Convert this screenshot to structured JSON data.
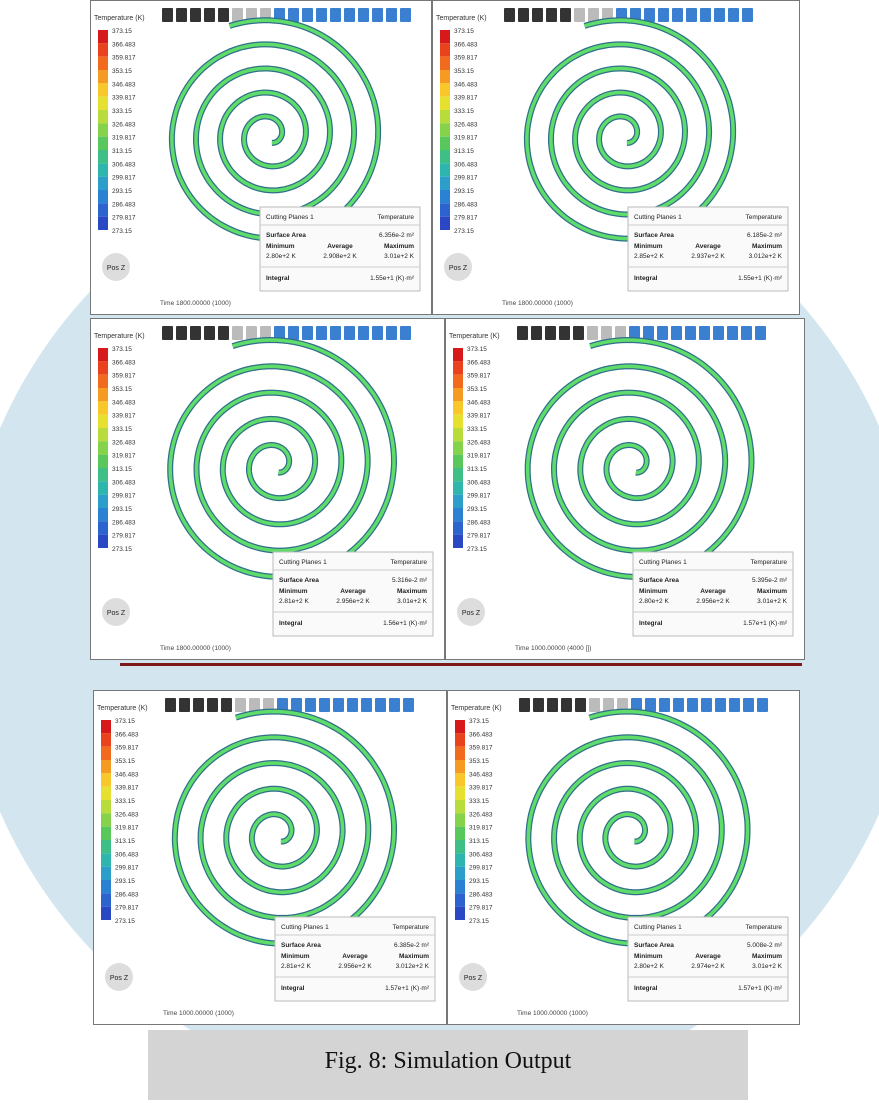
{
  "labels": {
    "legend_title": "Temperature (K)",
    "plane": "Cutting Planes 1",
    "quantity": "Temperature",
    "surface_area": "Surface Area",
    "minimum": "Minimum",
    "average": "Average",
    "maximum": "Maximum",
    "integral": "Integral",
    "view": "Pos Z"
  },
  "legend_ticks": [
    "373.15",
    "366.483",
    "359.817",
    "353.15",
    "346.483",
    "339.817",
    "333.15",
    "326.483",
    "319.817",
    "313.15",
    "306.483",
    "299.817",
    "293.15",
    "286.483",
    "279.817",
    "273.15"
  ],
  "panels": [
    {
      "surface_area": "6.356e-2 m²",
      "minimum": "2.80e+2 K",
      "average": "2.908e+2 K",
      "maximum": "3.01e+2 K",
      "integral": "1.55e+1 (K)·m²",
      "time": "Time 1800.00000 (1000)"
    },
    {
      "surface_area": "6.185e-2 m²",
      "minimum": "2.85e+2 K",
      "average": "2.937e+2 K",
      "maximum": "3.012e+2 K",
      "integral": "1.55e+1 (K)·m²",
      "time": "Time 1800.00000 (1000)"
    },
    {
      "surface_area": "5.316e-2 m²",
      "minimum": "2.81e+2 K",
      "average": "2.956e+2 K",
      "maximum": "3.01e+2 K",
      "integral": "1.56e+1 (K)·m²",
      "time": "Time 1800.00000 (1000)"
    },
    {
      "surface_area": "5.395e-2 m²",
      "minimum": "2.80e+2 K",
      "average": "2.956e+2 K",
      "maximum": "3.01e+2 K",
      "integral": "1.57e+1 (K)·m²",
      "time": "Time 1000.00000 (4000 [])"
    },
    {
      "surface_area": "6.385e-2 m²",
      "minimum": "2.81e+2 K",
      "average": "2.956e+2 K",
      "maximum": "3.012e+2 K",
      "integral": "1.57e+1 (K)·m²",
      "time": "Time 1000.00000 (1000)"
    },
    {
      "surface_area": "5.008e-2 m²",
      "minimum": "2.80e+2 K",
      "average": "2.974e+2 K",
      "maximum": "3.01e+2 K",
      "integral": "1.57e+1 (K)·m²",
      "time": "Time 1000.00000 (1000)"
    }
  ],
  "caption": "Fig. 8: Simulation Output"
}
